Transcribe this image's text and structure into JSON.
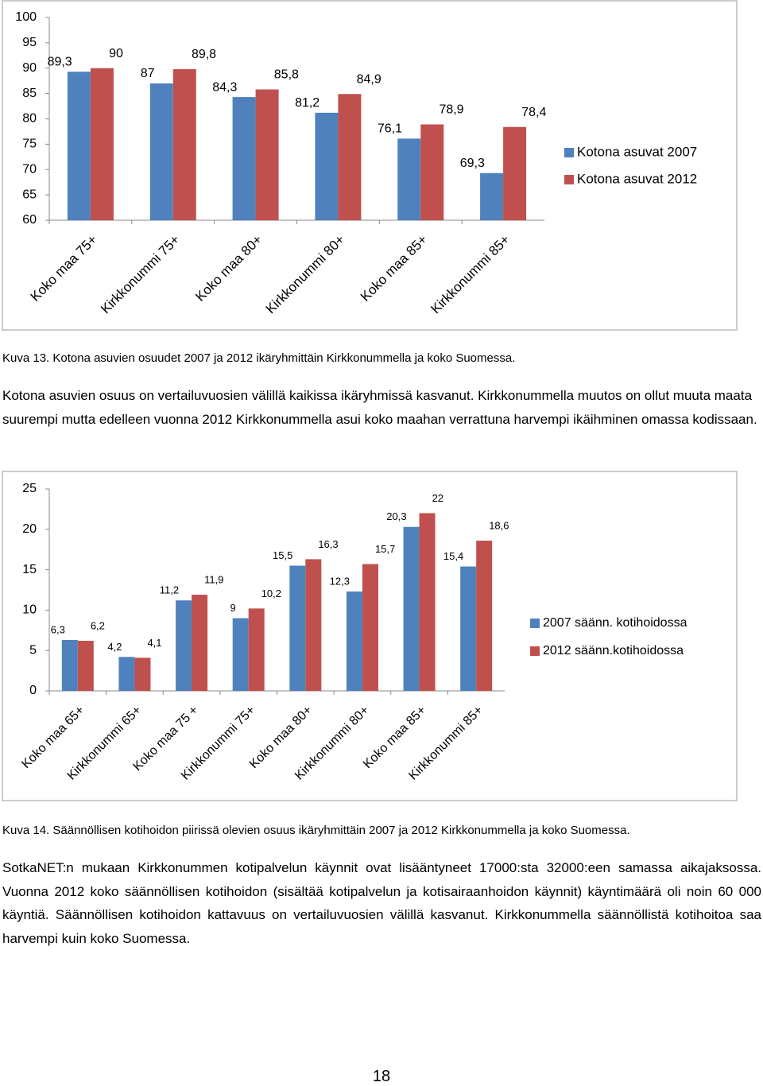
{
  "chart_data": [
    {
      "type": "bar",
      "categories": [
        "Koko maa 75+",
        "Kirkkonummi 75+",
        "Koko maa 80+",
        "Kirkkonummi 80+",
        "Koko maa 85+",
        "Kirkkonummi 85+"
      ],
      "series": [
        {
          "name": "Kotona asuvat 2007",
          "color": "#4f81bd",
          "values": [
            89.3,
            87,
            84.3,
            81.2,
            76.1,
            69.3
          ],
          "value_labels": [
            "89,3",
            "87",
            "84,3",
            "81,2",
            "76,1",
            "69,3"
          ]
        },
        {
          "name": "Kotona asuvat 2012",
          "color": "#c0504d",
          "values": [
            90,
            89.8,
            85.8,
            84.9,
            78.9,
            78.4
          ],
          "value_labels": [
            "90",
            "89,8",
            "85,8",
            "84,9",
            "78,9",
            "78,4"
          ]
        }
      ],
      "ylim": [
        60,
        100
      ],
      "yticks": [
        60,
        65,
        70,
        75,
        80,
        85,
        90,
        95,
        100
      ],
      "grid": false,
      "legend": "right"
    },
    {
      "type": "bar",
      "categories": [
        "Koko maa 65+",
        "Kirkkonummi 65+",
        "Koko maa 75 +",
        "Kirkkonummi 75+",
        "Koko maa 80+",
        "Kirkkonummi 80+",
        "Koko maa 85+",
        "Kirkkonummi 85+"
      ],
      "series": [
        {
          "name": "2007 säänn. kotihoidossa",
          "color": "#4f81bd",
          "values": [
            6.3,
            4.2,
            11.2,
            9,
            15.5,
            12.3,
            20.3,
            15.4
          ],
          "value_labels": [
            "6,3",
            "4,2",
            "11,2",
            "9",
            "15,5",
            "12,3",
            "20,3",
            "15,4"
          ]
        },
        {
          "name": "2012 säänn.kotihoidossa",
          "color": "#c0504d",
          "values": [
            6.2,
            4.1,
            11.9,
            10.2,
            16.3,
            15.7,
            22,
            18.6
          ],
          "value_labels": [
            "6,2",
            "4,1",
            "11,9",
            "10,2",
            "16,3",
            "15,7",
            "22",
            "18,6"
          ]
        }
      ],
      "ylim": [
        0,
        25
      ],
      "yticks": [
        0,
        5,
        10,
        15,
        20,
        25
      ],
      "grid": false,
      "legend": "right"
    }
  ],
  "caption_1": "Kuva 13. Kotona asuvien osuudet 2007 ja 2012 ikäryhmittäin Kirkkonummella ja koko Suomessa.",
  "paragraph_1": "Kotona asuvien osuus on vertailuvuosien välillä kaikissa ikäryhmissä kasvanut. Kirkkonummella muutos on ollut muuta maata suurempi mutta edelleen vuonna 2012 Kirkkonummella asui koko maahan verrattuna harvempi ikäihminen omassa kodissaan.",
  "caption_2": "Kuva 14. Säännöllisen kotihoidon piirissä olevien osuus ikäryhmittäin 2007 ja 2012 Kirkkonummella ja koko Suomessa.",
  "paragraph_2": "SotkaNET:n mukaan Kirkkonummen kotipalvelun käynnit ovat lisääntyneet 17000:sta 32000:een samassa aikajaksossa. Vuonna 2012 koko säännöllisen kotihoidon (sisältää kotipalvelun ja kotisairaanhoidon käynnit) käyntimäärä oli noin 60 000 käyntiä. Säännöllisen kotihoidon kattavuus on vertailuvuosien välillä kasvanut. Kirkkonummella säännöllistä kotihoitoa saa harvempi kuin koko Suomessa.",
  "page_number": "18"
}
